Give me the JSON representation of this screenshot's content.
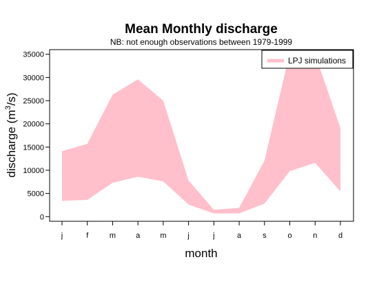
{
  "chart_data": {
    "type": "area",
    "title": "Mean Monthly discharge",
    "subtitle": "NB: not enough observations between 1979-1999",
    "xlabel": "month",
    "ylabel_main": "discharge (m",
    "ylabel_sup": "3",
    "ylabel_end": "/s)",
    "categories": [
      "j",
      "f",
      "m",
      "a",
      "m",
      "j",
      "j",
      "a",
      "s",
      "o",
      "n",
      "d"
    ],
    "ylim": [
      -1000,
      36000
    ],
    "yticks": [
      0,
      5000,
      10000,
      15000,
      20000,
      25000,
      30000,
      35000
    ],
    "ytick_labels": [
      "0",
      "5000",
      "10000",
      "15000",
      "20000",
      "25000",
      "30000",
      "35000"
    ],
    "series": [
      {
        "name": "LPJ simulations",
        "color": "#ffc0cb",
        "upper": [
          14100,
          15700,
          26300,
          29600,
          25000,
          7800,
          1500,
          1900,
          12100,
          35300,
          35000,
          19100
        ],
        "lower": [
          3400,
          3600,
          7300,
          8600,
          7600,
          2600,
          700,
          700,
          2800,
          9800,
          11600,
          5400
        ]
      }
    ],
    "legend": {
      "position": "top-right",
      "label": "LPJ simulations"
    },
    "grid": false
  }
}
